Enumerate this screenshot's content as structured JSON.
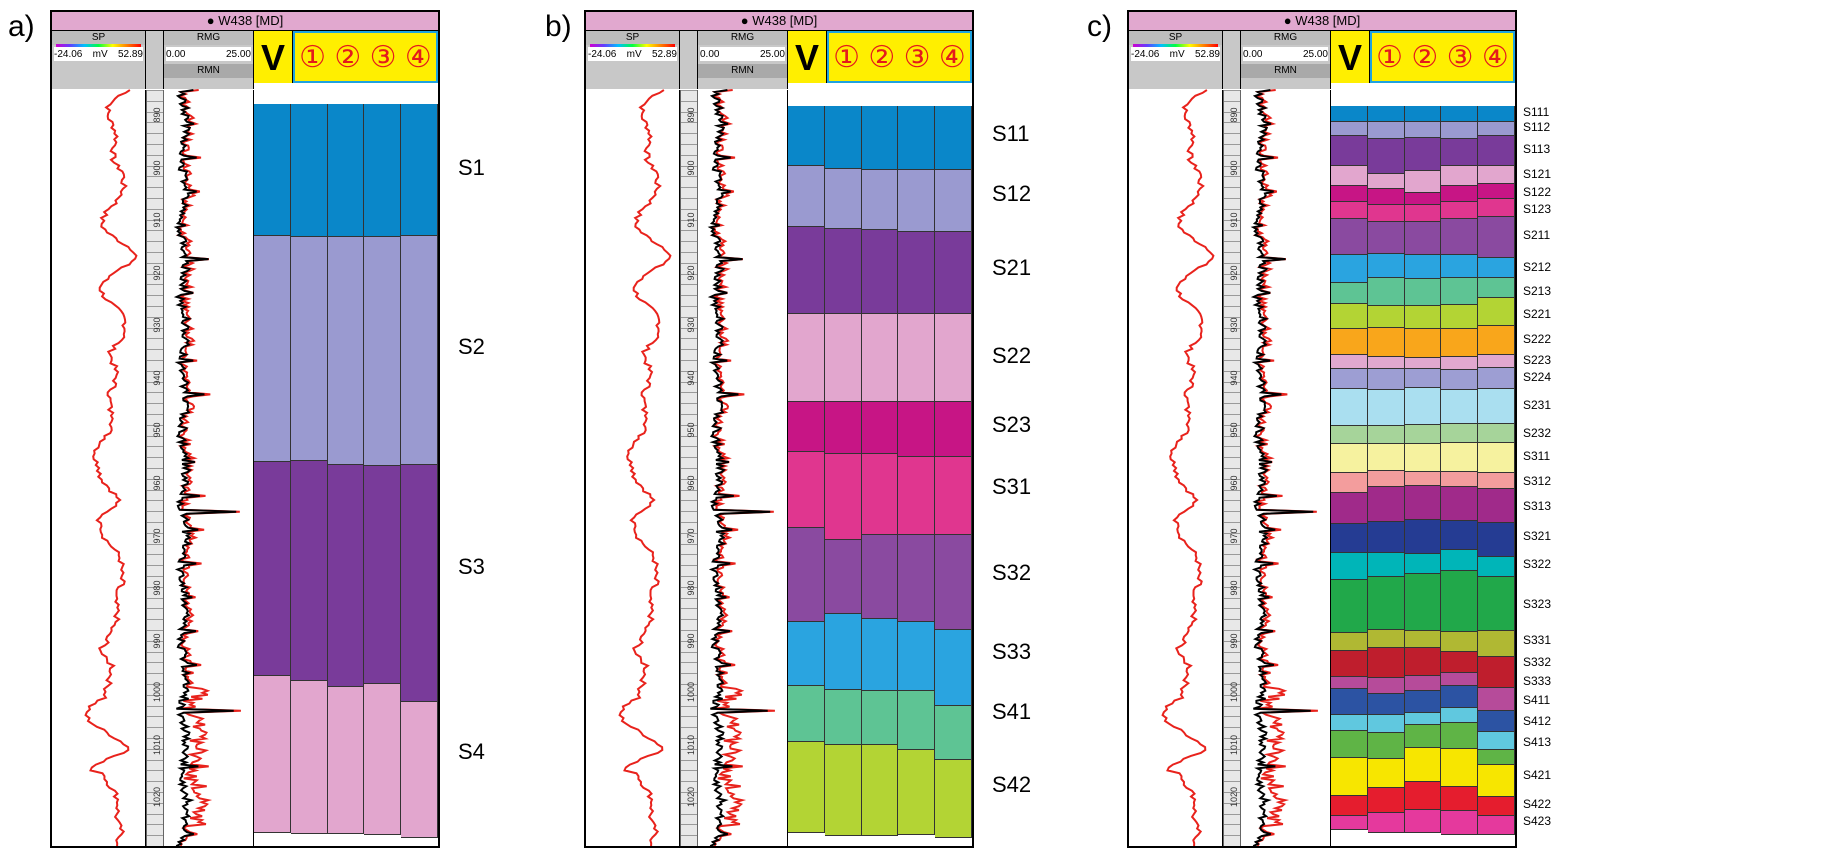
{
  "panels": [
    {
      "id": "a",
      "label": "a)",
      "zones": [
        "S1",
        "S2",
        "S3",
        "S4"
      ],
      "colors": [
        "#0a87c9",
        "#9a9ad0",
        "#793b9a",
        "#e2a6ce"
      ],
      "bounds": [
        [
          0,
          0.1777,
          0.4826,
          0.7715,
          0.9821
        ],
        [
          0,
          0.1787,
          0.4807,
          0.7775,
          0.984
        ],
        [
          0,
          0.1796,
          0.4866,
          0.7852,
          0.984
        ],
        [
          0,
          0.1796,
          0.4879,
          0.782,
          0.9852
        ],
        [
          0,
          0.1784,
          0.4866,
          0.8057,
          0.9891
        ]
      ]
    },
    {
      "id": "b",
      "label": "b)",
      "zones": [
        "S11",
        "S12",
        "S21",
        "S22",
        "S23",
        "S31",
        "S32",
        "S33",
        "S41",
        "S42"
      ],
      "colors": [
        "#0a87c9",
        "#9a9ad0",
        "#793b9a",
        "#e2a6ce",
        "#c71585",
        "#e0368f",
        "#8a4aa0",
        "#2aa4e0",
        "#5ec494",
        "#b3d434"
      ],
      "bounds": [
        [
          0,
          0.081,
          0.163,
          0.281,
          0.4,
          0.467,
          0.57,
          0.697,
          0.784,
          0.86,
          0.9821
        ],
        [
          0,
          0.085,
          0.166,
          0.281,
          0.4,
          0.47,
          0.586,
          0.686,
          0.789,
          0.864,
          0.987
        ],
        [
          0,
          0.087,
          0.168,
          0.281,
          0.4,
          0.47,
          0.58,
          0.693,
          0.79,
          0.864,
          0.987
        ],
        [
          0,
          0.087,
          0.17,
          0.281,
          0.4,
          0.474,
          0.58,
          0.697,
          0.79,
          0.87,
          0.9852
        ],
        [
          0,
          0.087,
          0.17,
          0.281,
          0.4,
          0.474,
          0.58,
          0.708,
          0.811,
          0.884,
          0.9891
        ]
      ]
    },
    {
      "id": "c",
      "label": "c)",
      "zones": [
        "S111",
        "S112",
        "S113",
        "S121",
        "S122",
        "S123",
        "S211",
        "S212",
        "S213",
        "S221",
        "S222",
        "S223",
        "S224",
        "S231",
        "S232",
        "S311",
        "S312",
        "S313",
        "S321",
        "S322",
        "S323",
        "S331",
        "S332",
        "S333",
        "S411",
        "S412",
        "S413",
        "S421",
        "S422",
        "S423"
      ],
      "colors": [
        "#0a87c9",
        "#9a9ad0",
        "#793b9a",
        "#e2a6ce",
        "#c71585",
        "#e0368f",
        "#8a4aa0",
        "#2aa4e0",
        "#5ec494",
        "#b3d434",
        "#f9a61b",
        "#e1a8cf",
        "#9d9ed3",
        "#aadff0",
        "#a6d49a",
        "#f6f29f",
        "#f39d9d",
        "#a02a8a",
        "#253c93",
        "#00b5b8",
        "#21a84a",
        "#b0b833",
        "#bf1e2d",
        "#b64b9a",
        "#2c53a3",
        "#60c8df",
        "#5fb446",
        "#f7e600",
        "#e51d2e",
        "#e5399d"
      ],
      "bounds": [
        [
          0,
          0.022,
          0.041,
          0.081,
          0.108,
          0.13,
          0.153,
          0.201,
          0.239,
          0.268,
          0.301,
          0.336,
          0.356,
          0.383,
          0.432,
          0.457,
          0.496,
          0.523,
          0.565,
          0.604,
          0.64,
          0.712,
          0.737,
          0.771,
          0.788,
          0.823,
          0.844,
          0.881,
          0.932,
          0.96,
          0.979
        ],
        [
          0,
          0.022,
          0.045,
          0.092,
          0.112,
          0.134,
          0.157,
          0.2,
          0.233,
          0.27,
          0.3,
          0.339,
          0.356,
          0.384,
          0.432,
          0.457,
          0.493,
          0.515,
          0.562,
          0.604,
          0.636,
          0.708,
          0.733,
          0.773,
          0.794,
          0.823,
          0.847,
          0.882,
          0.922,
          0.955,
          0.982
        ],
        [
          0,
          0.022,
          0.043,
          0.088,
          0.117,
          0.134,
          0.157,
          0.201,
          0.234,
          0.27,
          0.302,
          0.341,
          0.356,
          0.381,
          0.431,
          0.457,
          0.494,
          0.514,
          0.56,
          0.605,
          0.632,
          0.71,
          0.733,
          0.77,
          0.791,
          0.82,
          0.836,
          0.868,
          0.913,
          0.952,
          0.982
        ],
        [
          0,
          0.022,
          0.044,
          0.081,
          0.108,
          0.13,
          0.153,
          0.201,
          0.233,
          0.269,
          0.301,
          0.339,
          0.357,
          0.384,
          0.43,
          0.456,
          0.494,
          0.515,
          0.561,
          0.6,
          0.628,
          0.711,
          0.738,
          0.766,
          0.784,
          0.813,
          0.834,
          0.869,
          0.92,
          0.953,
          0.985
        ],
        [
          0,
          0.022,
          0.04,
          0.081,
          0.105,
          0.126,
          0.15,
          0.205,
          0.233,
          0.259,
          0.297,
          0.336,
          0.354,
          0.382,
          0.43,
          0.455,
          0.496,
          0.518,
          0.564,
          0.61,
          0.636,
          0.71,
          0.744,
          0.786,
          0.818,
          0.846,
          0.87,
          0.891,
          0.934,
          0.96,
          0.985
        ]
      ]
    }
  ],
  "header": {
    "well": "W438 [MD]",
    "sp_name": "SP",
    "sp_left": "-24.06",
    "sp_unit": "mV",
    "sp_right": "52.89",
    "rmg_name": "RMG",
    "rmg_left": "0.00",
    "rmg_right": "25.00",
    "rmn_name": "RMN",
    "v_label": "V",
    "circles": [
      "①",
      "②",
      "③",
      "④"
    ]
  },
  "depth_ticks": [
    "890",
    "900",
    "910",
    "920",
    "930",
    "940",
    "950",
    "960",
    "970",
    "980",
    "990",
    "1000",
    "1010",
    "1020"
  ]
}
